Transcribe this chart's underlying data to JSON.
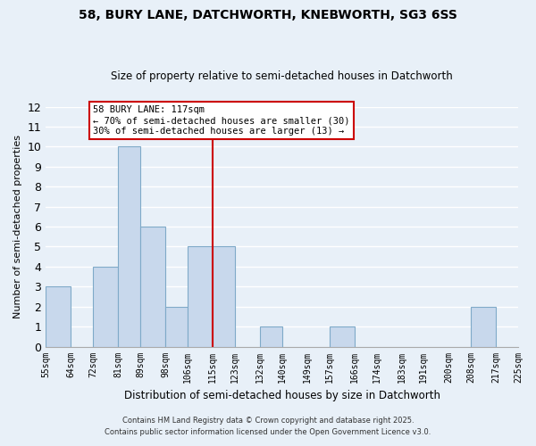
{
  "title1": "58, BURY LANE, DATCHWORTH, KNEBWORTH, SG3 6SS",
  "title2": "Size of property relative to semi-detached houses in Datchworth",
  "xlabel": "Distribution of semi-detached houses by size in Datchworth",
  "ylabel": "Number of semi-detached properties",
  "bin_labels": [
    "55sqm",
    "64sqm",
    "72sqm",
    "81sqm",
    "89sqm",
    "98sqm",
    "106sqm",
    "115sqm",
    "123sqm",
    "132sqm",
    "140sqm",
    "149sqm",
    "157sqm",
    "166sqm",
    "174sqm",
    "183sqm",
    "191sqm",
    "200sqm",
    "208sqm",
    "217sqm",
    "225sqm"
  ],
  "bar_values": [
    3,
    0,
    4,
    10,
    6,
    2,
    5,
    5,
    0,
    1,
    0,
    0,
    1,
    0,
    0,
    0,
    0,
    0,
    2,
    0
  ],
  "bar_color": "#c8d8ec",
  "bar_edge_color": "#7faac8",
  "background_color": "#e8f0f8",
  "grid_color": "#ffffff",
  "vline_x_idx": 7,
  "vline_color": "#cc0000",
  "ylim": [
    0,
    12
  ],
  "yticks": [
    0,
    1,
    2,
    3,
    4,
    5,
    6,
    7,
    8,
    9,
    10,
    11,
    12
  ],
  "bin_edges": [
    55,
    64,
    72,
    81,
    89,
    98,
    106,
    115,
    123,
    132,
    140,
    149,
    157,
    166,
    174,
    183,
    191,
    200,
    208,
    217,
    225
  ],
  "annotation_title": "58 BURY LANE: 117sqm",
  "annotation_line1": "← 70% of semi-detached houses are smaller (30)",
  "annotation_line2": "30% of semi-detached houses are larger (13) →",
  "annotation_box_color": "#ffffff",
  "annotation_box_edge": "#cc0000",
  "footnote1": "Contains HM Land Registry data © Crown copyright and database right 2025.",
  "footnote2": "Contains public sector information licensed under the Open Government Licence v3.0."
}
